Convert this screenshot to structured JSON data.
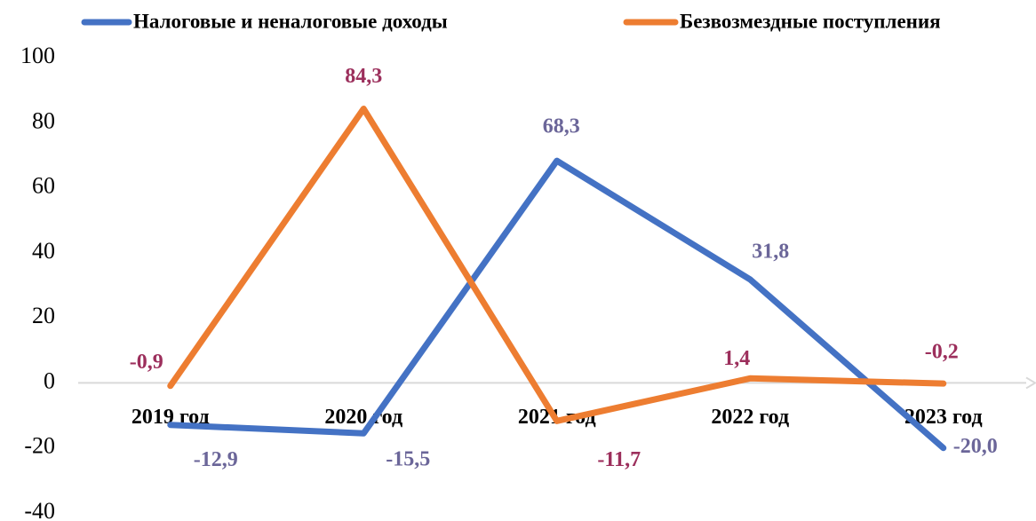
{
  "chart_data": {
    "type": "line",
    "categories": [
      "2019 год",
      "2020 год",
      "2021 год",
      "2022 год",
      "2023 год"
    ],
    "series": [
      {
        "name": "Налоговые и неналоговые доходы",
        "color": "#4472c4",
        "values": [
          -12.9,
          -15.5,
          68.3,
          31.8,
          -20.0
        ],
        "value_labels": [
          "-12,9",
          "-15,5",
          "68,3",
          "31,8",
          "-20,0"
        ],
        "label_color": "#6b6699"
      },
      {
        "name": "Безвозмездные поступления",
        "color": "#ed7d31",
        "values": [
          -0.9,
          84.3,
          -11.7,
          1.4,
          -0.2
        ],
        "value_labels": [
          "-0,9",
          "84,3",
          "-11,7",
          "1,4",
          "-0,2"
        ],
        "label_color": "#9c2f5c"
      }
    ],
    "ylim": [
      -40,
      100
    ],
    "yticks": [
      -40,
      -20,
      0,
      20,
      40,
      60,
      80,
      100
    ],
    "grid": false
  }
}
